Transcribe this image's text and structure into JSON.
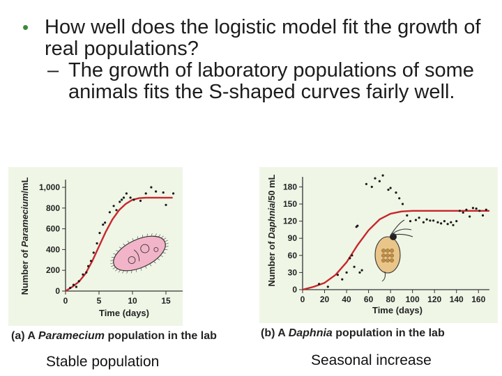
{
  "bullets": {
    "level1": "How well does the logistic model fit the growth of real populations?",
    "level2": "The growth of laboratory populations of some animals fits the S-shaped curves fairly well."
  },
  "charts": {
    "a": {
      "caption_tag": "(a) A",
      "caption_italic": "Paramecium",
      "caption_rest": "population in the lab",
      "ylabel_pre": "Number of ",
      "ylabel_italic": "Paramecium",
      "ylabel_post": "/mL",
      "xlabel": "Time (days)",
      "ytick_labels": [
        "0",
        "200",
        "400",
        "600",
        "800",
        "1,000"
      ],
      "xtick_labels": [
        "0",
        "5",
        "10",
        "15"
      ]
    },
    "b": {
      "caption_tag": "(b) A",
      "caption_italic": "Daphnia",
      "caption_rest": "population in the lab",
      "ylabel_pre": "Number of ",
      "ylabel_italic": "Daphnia",
      "ylabel_post": "/50 mL",
      "xlabel": "Time (days)",
      "ytick_labels": [
        "0",
        "30",
        "60",
        "90",
        "120",
        "150",
        "180"
      ],
      "xtick_labels": [
        "0",
        "20",
        "40",
        "60",
        "80",
        "100",
        "120",
        "140",
        "160"
      ]
    }
  },
  "footnotes": {
    "left": "Stable population",
    "right": "Seasonal increase"
  },
  "colors": {
    "panel_bg": "#eff6e6",
    "curve": "#c8262c",
    "points": "#1a1a1a",
    "bullet": "#3a8a3a"
  },
  "chart_data": [
    {
      "type": "scatter",
      "xlim": [
        0,
        17.5
      ],
      "ylim": [
        0,
        1000
      ],
      "curve": {
        "x": [
          0,
          1,
          2,
          3,
          4,
          5,
          6,
          7,
          8,
          9,
          10,
          11,
          12,
          13,
          14,
          15,
          16
        ],
        "y": [
          0,
          40,
          90,
          170,
          290,
          430,
          570,
          690,
          780,
          840,
          880,
          895,
          900,
          900,
          900,
          900,
          900
        ]
      },
      "points": {
        "x": [
          0.7,
          1.2,
          1.6,
          2.0,
          2.6,
          3.1,
          3.4,
          3.8,
          4.2,
          4.7,
          5.1,
          5.6,
          5.9,
          6.6,
          7.2,
          7.6,
          8.1,
          8.4,
          8.7,
          9.1,
          9.7,
          10.2,
          11.2,
          12.0,
          12.8,
          13.5,
          14.6,
          15.0,
          16.1
        ],
        "y": [
          30,
          60,
          40,
          95,
          160,
          180,
          240,
          290,
          370,
          460,
          560,
          640,
          660,
          760,
          820,
          780,
          860,
          880,
          900,
          940,
          900,
          880,
          870,
          940,
          1000,
          960,
          950,
          830,
          940
        ]
      }
    },
    {
      "type": "scatter",
      "xlim": [
        0,
        170
      ],
      "ylim": [
        0,
        200
      ],
      "curve": {
        "x": [
          0,
          10,
          20,
          30,
          40,
          50,
          60,
          70,
          80,
          90,
          100,
          110,
          120,
          140,
          160,
          170
        ],
        "y": [
          0,
          5,
          12,
          26,
          48,
          78,
          104,
          123,
          133,
          137,
          138,
          138,
          138,
          138,
          138,
          138
        ]
      },
      "points": {
        "x": [
          15,
          23,
          32,
          36,
          40,
          43,
          45,
          47,
          49,
          50,
          52,
          54,
          58,
          63,
          66,
          70,
          73,
          78,
          80,
          85,
          88,
          91,
          95,
          98,
          103,
          106,
          110,
          113,
          116,
          119,
          123,
          126,
          129,
          132,
          135,
          137,
          140,
          143,
          146,
          149,
          152,
          155,
          158,
          161,
          164,
          167
        ],
        "y": [
          10,
          5,
          26,
          18,
          30,
          55,
          60,
          40,
          110,
          112,
          30,
          34,
          185,
          180,
          195,
          190,
          200,
          175,
          178,
          170,
          160,
          150,
          130,
          120,
          122,
          126,
          118,
          123,
          121,
          121,
          118,
          116,
          120,
          115,
          118,
          113,
          120,
          138,
          135,
          140,
          128,
          143,
          142,
          138,
          130,
          140
        ]
      }
    }
  ]
}
